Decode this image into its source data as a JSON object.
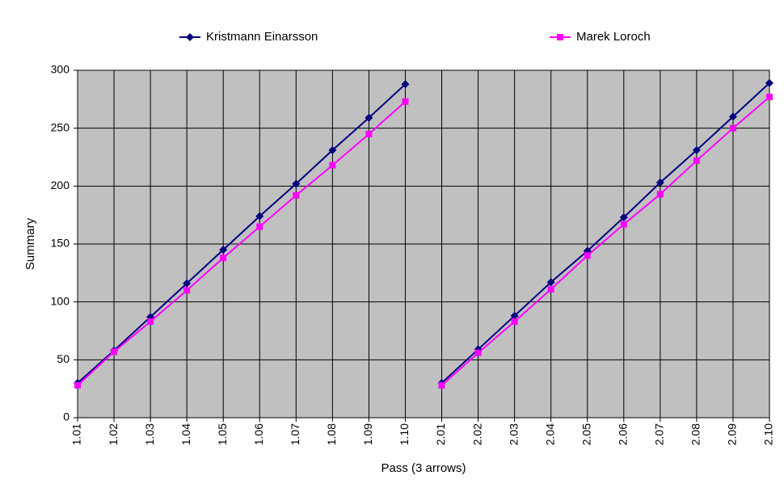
{
  "chart_data": {
    "type": "line",
    "x_label": "Pass (3 arrows)",
    "y_label": "Summary",
    "categories": [
      [
        "1.01",
        "1.02",
        "1.03",
        "1.04",
        "1.05",
        "1.06",
        "1.07",
        "1.08",
        "1.09",
        "1.10"
      ],
      [
        "2.01",
        "2.02",
        "2.03",
        "2.04",
        "2.05",
        "2.06",
        "2.07",
        "2.08",
        "2.09",
        "2.10"
      ]
    ],
    "series": [
      {
        "name": "Kristmann Einarsson",
        "color": "#000080",
        "marker": "diamond",
        "values": [
          [
            30,
            58,
            87,
            116,
            145,
            174,
            202,
            231,
            259,
            288
          ],
          [
            30,
            59,
            88,
            117,
            144,
            173,
            203,
            231,
            260,
            289
          ]
        ]
      },
      {
        "name": "Marek Loroch",
        "color": "#ff00ff",
        "marker": "square",
        "values": [
          [
            28,
            57,
            83,
            110,
            138,
            165,
            192,
            218,
            245,
            273
          ],
          [
            28,
            56,
            83,
            111,
            140,
            167,
            193,
            222,
            250,
            277
          ]
        ]
      }
    ],
    "ylim": [
      0,
      300
    ],
    "yticks": [
      0,
      50,
      100,
      150,
      200,
      250,
      300
    ],
    "grid": true,
    "plot_background": "#c0c0c0",
    "legend": "top"
  }
}
